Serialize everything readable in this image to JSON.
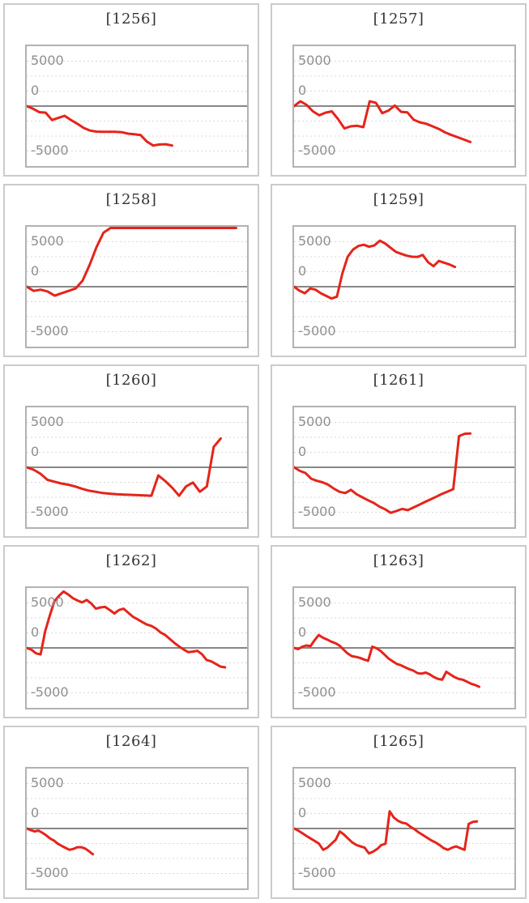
{
  "axis": {
    "tick_labels": [
      "5000",
      "0",
      "-5000"
    ]
  },
  "colors": {
    "line": "#e5241b",
    "grid_dotted": "#d8d8d8",
    "zero_line": "#878787",
    "plot_border": "#b2b2b2",
    "card_border": "#cbcbcb",
    "axis_label": "#8e8e8e",
    "title": "#333333",
    "background": "#ffffff"
  },
  "chart_data": [
    {
      "type": "line",
      "title": "[1256]",
      "ylim": [
        -5000,
        5000
      ],
      "yticks": [
        5000,
        0,
        -5000
      ],
      "grid_interval": 1250,
      "x_extent": 0.66,
      "grid": true,
      "legend": "none",
      "values": [
        0,
        -220,
        -505,
        -550,
        -1160,
        -985,
        -810,
        -1160,
        -1470,
        -1820,
        -2040,
        -2125,
        -2150,
        -2150,
        -2150,
        -2175,
        -2300,
        -2345,
        -2410,
        -2960,
        -3290,
        -3200,
        -3180,
        -3290
      ]
    },
    {
      "type": "line",
      "title": "[1257]",
      "ylim": [
        -5000,
        5000
      ],
      "yticks": [
        5000,
        0,
        -5000
      ],
      "grid_interval": 1250,
      "x_extent": 0.8,
      "grid": true,
      "legend": "none",
      "values": [
        0,
        400,
        100,
        -440,
        -770,
        -550,
        -440,
        -1095,
        -1865,
        -1690,
        -1645,
        -1755,
        400,
        280,
        -590,
        -370,
        50,
        -480,
        -525,
        -1140,
        -1360,
        -1470,
        -1690,
        -1905,
        -2195,
        -2410,
        -2600,
        -2800,
        -3000
      ]
    },
    {
      "type": "line",
      "title": "[1258]",
      "ylim": [
        -5000,
        5000
      ],
      "yticks": [
        5000,
        0,
        -5000
      ],
      "grid_interval": 1250,
      "x_extent": 0.95,
      "grid": true,
      "legend": "none",
      "values": [
        0,
        -350,
        -250,
        -400,
        -750,
        -550,
        -350,
        -150,
        500,
        1800,
        3300,
        4500,
        4900,
        4900,
        4900,
        4900,
        4900,
        4900,
        4900,
        4900,
        4900,
        4900,
        4900,
        4900,
        4900,
        4900,
        4900,
        4900,
        4900,
        4900,
        4900
      ]
    },
    {
      "type": "line",
      "title": "[1259]",
      "ylim": [
        -5000,
        5000
      ],
      "yticks": [
        5000,
        0,
        -5000
      ],
      "grid_interval": 1250,
      "x_extent": 0.73,
      "grid": true,
      "legend": "none",
      "values": [
        0,
        -330,
        -550,
        -150,
        -250,
        -550,
        -770,
        -985,
        -830,
        1100,
        2500,
        3100,
        3400,
        3500,
        3330,
        3450,
        3840,
        3600,
        3250,
        2900,
        2740,
        2590,
        2500,
        2480,
        2650,
        2040,
        1710,
        2150,
        2000,
        1850,
        1650
      ]
    },
    {
      "type": "line",
      "title": "[1260]",
      "ylim": [
        -5000,
        5000
      ],
      "yticks": [
        5000,
        0,
        -5000
      ],
      "grid_interval": 1250,
      "x_extent": 0.88,
      "grid": true,
      "legend": "none",
      "values": [
        0,
        -200,
        -550,
        -1050,
        -1200,
        -1350,
        -1450,
        -1600,
        -1800,
        -1950,
        -2050,
        -2150,
        -2200,
        -2250,
        -2275,
        -2300,
        -2325,
        -2350,
        -2370,
        -680,
        -1150,
        -1700,
        -2370,
        -1600,
        -1270,
        -2040,
        -1600,
        1700,
        2400
      ]
    },
    {
      "type": "line",
      "title": "[1261]",
      "ylim": [
        -5000,
        5000
      ],
      "yticks": [
        5000,
        0,
        -5000
      ],
      "grid_interval": 1250,
      "x_extent": 0.8,
      "grid": true,
      "legend": "none",
      "values": [
        0,
        -300,
        -475,
        -950,
        -1125,
        -1250,
        -1450,
        -1775,
        -2050,
        -2150,
        -1875,
        -2250,
        -2500,
        -2750,
        -2975,
        -3275,
        -3500,
        -3800,
        -3650,
        -3475,
        -3575,
        -3350,
        -3125,
        -2900,
        -2675,
        -2450,
        -2225,
        -2025,
        -1825,
        2600,
        2800,
        2825
      ]
    },
    {
      "type": "line",
      "title": "[1262]",
      "ylim": [
        -5000,
        5000
      ],
      "yticks": [
        5000,
        0,
        -5000
      ],
      "grid_interval": 1250,
      "x_extent": 0.9,
      "grid": true,
      "legend": "none",
      "values": [
        0,
        -150,
        -450,
        -550,
        1400,
        2700,
        3900,
        4350,
        4700,
        4450,
        4150,
        3950,
        3800,
        4000,
        3700,
        3270,
        3380,
        3420,
        3160,
        2870,
        3160,
        3270,
        2940,
        2610,
        2390,
        2170,
        1950,
        1840,
        1620,
        1290,
        1080,
        750,
        420,
        130,
        -130,
        -350,
        -310,
        -240,
        -530,
        -1010,
        -1120,
        -1340,
        -1560,
        -1620
      ]
    },
    {
      "type": "line",
      "title": "[1263]",
      "ylim": [
        -5000,
        5000
      ],
      "yticks": [
        5000,
        0,
        -5000
      ],
      "grid_interval": 1250,
      "x_extent": 0.84,
      "grid": true,
      "legend": "none",
      "values": [
        0,
        -100,
        100,
        200,
        150,
        650,
        1075,
        850,
        700,
        525,
        400,
        200,
        -130,
        -460,
        -680,
        -750,
        -830,
        -965,
        -1075,
        100,
        -20,
        -240,
        -570,
        -900,
        -1120,
        -1340,
        -1450,
        -1620,
        -1780,
        -1890,
        -2100,
        -2150,
        -2060,
        -2215,
        -2435,
        -2590,
        -2655,
        -1995,
        -2215,
        -2435,
        -2590,
        -2655,
        -2810,
        -2985,
        -3095,
        -3245
      ]
    },
    {
      "type": "line",
      "title": "[1264]",
      "ylim": [
        -5000,
        5000
      ],
      "yticks": [
        5000,
        0,
        -5000
      ],
      "grid_interval": 1250,
      "x_extent": 0.3,
      "grid": true,
      "legend": "none",
      "values": [
        0,
        -130,
        -240,
        -175,
        -350,
        -570,
        -830,
        -1010,
        -1270,
        -1450,
        -1620,
        -1780,
        -1700,
        -1560,
        -1560,
        -1670,
        -1890,
        -2150
      ]
    },
    {
      "type": "line",
      "title": "[1265]",
      "ylim": [
        -5000,
        5000
      ],
      "yticks": [
        5000,
        0,
        -5000
      ],
      "grid_interval": 1250,
      "x_extent": 0.83,
      "grid": true,
      "legend": "none",
      "values": [
        0,
        -175,
        -400,
        -620,
        -840,
        -1050,
        -1270,
        -1775,
        -1600,
        -1270,
        -950,
        -240,
        -505,
        -840,
        -1160,
        -1380,
        -1490,
        -1600,
        -2080,
        -1930,
        -1710,
        -1380,
        -1270,
        1430,
        920,
        640,
        480,
        410,
        150,
        -65,
        -330,
        -550,
        -770,
        -985,
        -1160,
        -1380,
        -1645,
        -1775,
        -1600,
        -1490,
        -1645,
        -1775,
        380,
        550,
        590
      ]
    }
  ]
}
